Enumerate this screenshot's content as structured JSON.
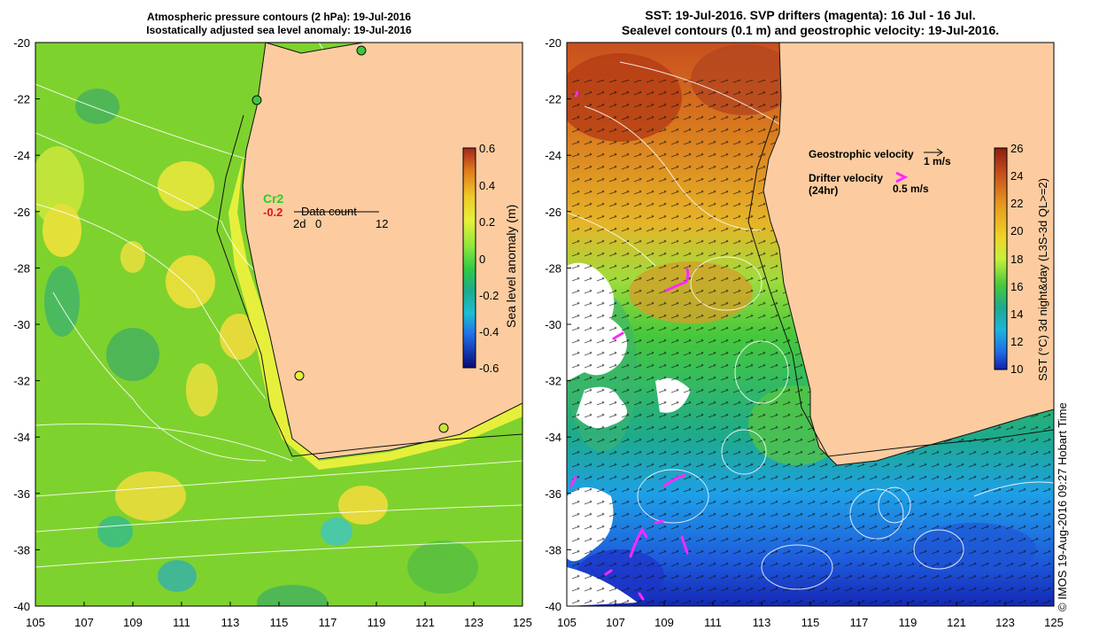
{
  "left_panel": {
    "title_line1": "Atmospheric pressure contours (2 hPa): 19-Jul-2016",
    "title_line2": "Isostatically adjusted sea level anomaly: 19-Jul-2016",
    "colorbar": {
      "label": "Sea level anomaly (m)",
      "ticks": [
        "0.6",
        "0.4",
        "0.2",
        "0",
        "-0.2",
        "-0.4",
        "-0.6"
      ],
      "colors": [
        "#a0281e",
        "#e0781e",
        "#f0c828",
        "#ffff3c",
        "#c8f03c",
        "#3ccd32",
        "#1eaa6e",
        "#1ebed2",
        "#1e78e6",
        "#1428b4",
        "#0a0a78"
      ]
    },
    "station_label": "Cr2",
    "station_value": "-0.2",
    "legend_title": "Data count",
    "legend_values": [
      "2d",
      "0",
      "12"
    ]
  },
  "right_panel": {
    "title_line1": "SST: 19-Jul-2016. SVP drifters (magenta): 16 Jul - 16 Jul.",
    "title_line2": "Sealevel contours (0.1 m) and geostrophic velocity: 19-Jul-2016.",
    "colorbar": {
      "label": "SST (°C) 3d night&day (L3S-3d QL>=2)",
      "ticks": [
        "26",
        "24",
        "22",
        "20",
        "18",
        "16",
        "14",
        "12",
        "10"
      ],
      "colors": [
        "#8c1e0f",
        "#c8501e",
        "#e6961e",
        "#f0d228",
        "#c8f03c",
        "#46c83c",
        "#1eaa8c",
        "#1eb4dc",
        "#1e6ee6",
        "#141eaa"
      ]
    },
    "geo_velocity_label": "Geostrophic velocity",
    "geo_velocity_scale": "1 m/s",
    "drifter_label_line1": "Drifter velocity",
    "drifter_label_line2": "(24hr)",
    "drifter_scale": "0.5 m/s"
  },
  "axes": {
    "y_ticks": [
      "-20",
      "-22",
      "-24",
      "-26",
      "-28",
      "-30",
      "-32",
      "-34",
      "-36",
      "-38",
      "-40"
    ],
    "x_ticks": [
      "105",
      "107",
      "109",
      "111",
      "113",
      "115",
      "117",
      "119",
      "121",
      "123",
      "125"
    ]
  },
  "colors": {
    "land": "#fccca0",
    "drifter": "#ff28ff",
    "station_green": "#22d422",
    "station_red": "#e01818"
  },
  "credit": "© IMOS 19-Aug-2016 09:27 Hobart Time"
}
